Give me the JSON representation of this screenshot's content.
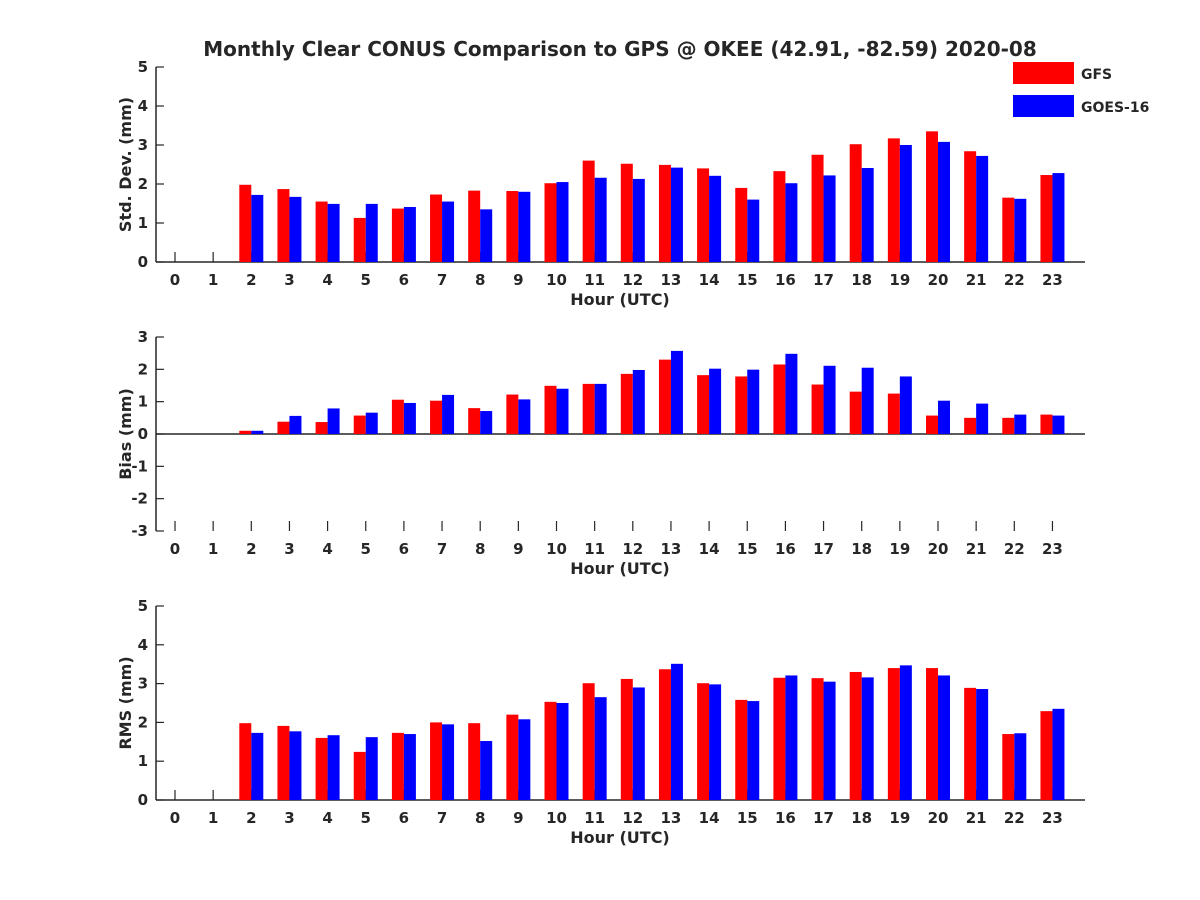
{
  "title": "Monthly Clear CONUS Comparison to GPS @ OKEE (42.91, -82.59) 2020-08",
  "legend": [
    {
      "name": "GFS",
      "color": "#ff0000"
    },
    {
      "name": "GOES-16",
      "color": "#0000ff"
    }
  ],
  "chart_data": [
    {
      "type": "bar",
      "xlabel": "Hour (UTC)",
      "ylabel": "Std. Dev. (mm)",
      "ylim": [
        0,
        5
      ],
      "yticks": [
        0,
        1,
        2,
        3,
        4,
        5
      ],
      "categories": [
        0,
        1,
        2,
        3,
        4,
        5,
        6,
        7,
        8,
        9,
        10,
        11,
        12,
        13,
        14,
        15,
        16,
        17,
        18,
        19,
        20,
        21,
        22,
        23
      ],
      "series": [
        {
          "name": "GFS",
          "color": "#ff0000",
          "values": [
            null,
            null,
            1.98,
            1.87,
            1.55,
            1.13,
            1.37,
            1.73,
            1.83,
            1.82,
            2.02,
            2.6,
            2.52,
            2.49,
            2.4,
            1.9,
            2.33,
            2.75,
            3.02,
            3.17,
            3.35,
            2.84,
            1.65,
            2.23
          ]
        },
        {
          "name": "GOES-16",
          "color": "#0000ff",
          "values": [
            null,
            null,
            1.72,
            1.67,
            1.49,
            1.49,
            1.41,
            1.55,
            1.35,
            1.8,
            2.05,
            2.16,
            2.13,
            2.42,
            2.21,
            1.6,
            2.02,
            2.22,
            2.41,
            3.0,
            3.08,
            2.72,
            1.62,
            2.28
          ]
        }
      ]
    },
    {
      "type": "bar",
      "xlabel": "Hour (UTC)",
      "ylabel": "Bias (mm)",
      "ylim": [
        -3,
        3
      ],
      "yticks": [
        -3,
        -2,
        -1,
        0,
        1,
        2,
        3
      ],
      "categories": [
        0,
        1,
        2,
        3,
        4,
        5,
        6,
        7,
        8,
        9,
        10,
        11,
        12,
        13,
        14,
        15,
        16,
        17,
        18,
        19,
        20,
        21,
        22,
        23
      ],
      "series": [
        {
          "name": "GFS",
          "color": "#ff0000",
          "values": [
            null,
            null,
            0.1,
            0.38,
            0.37,
            0.57,
            1.06,
            1.03,
            0.8,
            1.22,
            1.49,
            1.55,
            1.86,
            2.3,
            1.82,
            1.78,
            2.15,
            1.53,
            1.31,
            1.25,
            0.57,
            0.5,
            0.5,
            0.6
          ]
        },
        {
          "name": "GOES-16",
          "color": "#0000ff",
          "values": [
            null,
            null,
            0.1,
            0.56,
            0.79,
            0.66,
            0.96,
            1.21,
            0.71,
            1.07,
            1.4,
            1.55,
            1.98,
            2.57,
            2.02,
            1.99,
            2.48,
            2.11,
            2.05,
            1.78,
            1.03,
            0.94,
            0.6,
            0.57
          ]
        }
      ]
    },
    {
      "type": "bar",
      "xlabel": "Hour (UTC)",
      "ylabel": "RMS (mm)",
      "ylim": [
        0,
        5
      ],
      "yticks": [
        0,
        1,
        2,
        3,
        4,
        5
      ],
      "categories": [
        0,
        1,
        2,
        3,
        4,
        5,
        6,
        7,
        8,
        9,
        10,
        11,
        12,
        13,
        14,
        15,
        16,
        17,
        18,
        19,
        20,
        21,
        22,
        23
      ],
      "series": [
        {
          "name": "GFS",
          "color": "#ff0000",
          "values": [
            null,
            null,
            1.98,
            1.91,
            1.6,
            1.24,
            1.73,
            2.0,
            1.98,
            2.2,
            2.53,
            3.01,
            3.12,
            3.37,
            3.01,
            2.58,
            3.15,
            3.14,
            3.3,
            3.4,
            3.4,
            2.89,
            1.7,
            2.29
          ]
        },
        {
          "name": "GOES-16",
          "color": "#0000ff",
          "values": [
            null,
            null,
            1.73,
            1.77,
            1.67,
            1.62,
            1.7,
            1.95,
            1.52,
            2.08,
            2.5,
            2.65,
            2.9,
            3.51,
            2.98,
            2.55,
            3.21,
            3.05,
            3.16,
            3.47,
            3.21,
            2.86,
            1.72,
            2.35
          ]
        }
      ]
    }
  ]
}
